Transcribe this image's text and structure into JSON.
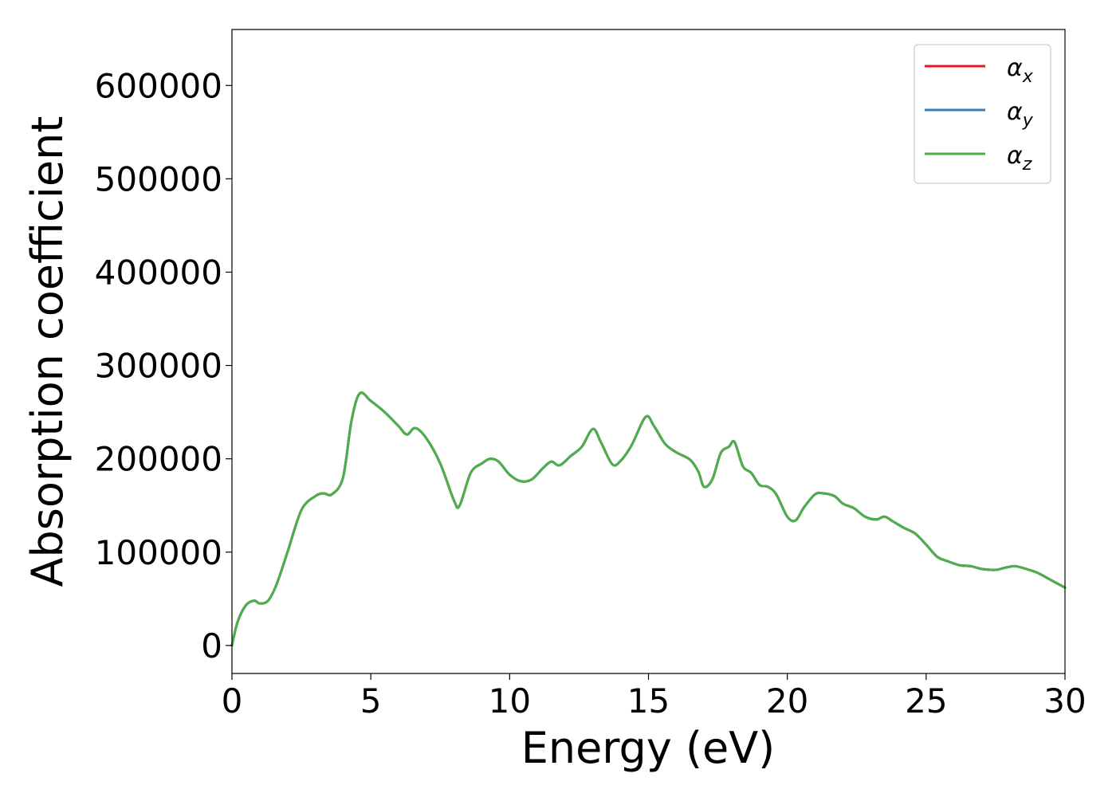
{
  "chart_data": {
    "type": "line",
    "title": "",
    "xlabel": "Energy (eV)",
    "ylabel": "Absorption coefficient",
    "xlim": [
      0,
      30
    ],
    "ylim": [
      -30000,
      660000
    ],
    "xticks": [
      0,
      5,
      10,
      15,
      20,
      25,
      30
    ],
    "xtick_labels": [
      "0",
      "5",
      "10",
      "15",
      "20",
      "25",
      "30"
    ],
    "yticks": [
      0,
      100000,
      200000,
      300000,
      400000,
      500000,
      600000
    ],
    "ytick_labels": [
      "0",
      "100000",
      "200000",
      "300000",
      "400000",
      "500000",
      "600000"
    ],
    "grid": false,
    "legend_position": "top-right",
    "x": [
      0,
      0.2,
      0.5,
      0.8,
      1.0,
      1.3,
      1.6,
      2.0,
      2.5,
      3.0,
      3.3,
      3.6,
      4.0,
      4.3,
      4.6,
      5.0,
      5.5,
      6.0,
      6.3,
      6.6,
      7.0,
      7.5,
      8.0,
      8.2,
      8.6,
      9.0,
      9.3,
      9.6,
      10.0,
      10.4,
      10.8,
      11.2,
      11.5,
      11.8,
      12.2,
      12.6,
      13.0,
      13.3,
      13.7,
      14.0,
      14.4,
      14.9,
      15.2,
      15.6,
      16.0,
      16.5,
      16.8,
      17.0,
      17.3,
      17.6,
      17.9,
      18.1,
      18.4,
      18.7,
      19.0,
      19.3,
      19.6,
      20.0,
      20.3,
      20.6,
      21.0,
      21.3,
      21.7,
      22.0,
      22.4,
      22.8,
      23.2,
      23.5,
      23.8,
      24.2,
      24.6,
      25.0,
      25.4,
      25.8,
      26.2,
      26.6,
      27.0,
      27.5,
      27.8,
      28.2,
      28.6,
      29.0,
      29.5,
      30.0
    ],
    "series": [
      {
        "name": "αx",
        "label_base": "α",
        "label_sub": "x",
        "color": "#e41a1c",
        "values": [
          0,
          25000,
          43000,
          48000,
          45000,
          48000,
          65000,
          100000,
          145000,
          160000,
          163000,
          162000,
          180000,
          240000,
          270000,
          262000,
          250000,
          235000,
          226000,
          233000,
          222000,
          195000,
          155000,
          150000,
          185000,
          195000,
          200000,
          197000,
          183000,
          176000,
          178000,
          190000,
          197000,
          193000,
          203000,
          213000,
          232000,
          217000,
          194000,
          198000,
          215000,
          245000,
          235000,
          216000,
          207000,
          199000,
          186000,
          170000,
          178000,
          206000,
          213000,
          218000,
          192000,
          185000,
          172000,
          170000,
          162000,
          138000,
          134000,
          148000,
          162000,
          163000,
          160000,
          152000,
          147000,
          138000,
          135000,
          138000,
          133000,
          126000,
          120000,
          108000,
          95000,
          90000,
          86000,
          85000,
          82000,
          81000,
          83000,
          85000,
          82000,
          78000,
          70000,
          62000
        ]
      },
      {
        "name": "αy",
        "label_base": "α",
        "label_sub": "y",
        "color": "#377eb8",
        "values": [
          0,
          25000,
          43000,
          48000,
          45000,
          48000,
          65000,
          100000,
          145000,
          160000,
          163000,
          162000,
          180000,
          240000,
          270000,
          262000,
          250000,
          235000,
          226000,
          233000,
          222000,
          195000,
          155000,
          150000,
          185000,
          195000,
          200000,
          197000,
          183000,
          176000,
          178000,
          190000,
          197000,
          193000,
          203000,
          213000,
          232000,
          217000,
          194000,
          198000,
          215000,
          245000,
          235000,
          216000,
          207000,
          199000,
          186000,
          170000,
          178000,
          206000,
          213000,
          218000,
          192000,
          185000,
          172000,
          170000,
          162000,
          138000,
          134000,
          148000,
          162000,
          163000,
          160000,
          152000,
          147000,
          138000,
          135000,
          138000,
          133000,
          126000,
          120000,
          108000,
          95000,
          90000,
          86000,
          85000,
          82000,
          81000,
          83000,
          85000,
          82000,
          78000,
          70000,
          62000
        ]
      },
      {
        "name": "αz",
        "label_base": "α",
        "label_sub": "z",
        "color": "#4daf4a",
        "values": [
          0,
          25000,
          43000,
          48000,
          45000,
          48000,
          65000,
          100000,
          145000,
          160000,
          163000,
          162000,
          180000,
          240000,
          270000,
          262000,
          250000,
          235000,
          226000,
          233000,
          222000,
          195000,
          155000,
          150000,
          185000,
          195000,
          200000,
          197000,
          183000,
          176000,
          178000,
          190000,
          197000,
          193000,
          203000,
          213000,
          232000,
          217000,
          194000,
          198000,
          215000,
          245000,
          235000,
          216000,
          207000,
          199000,
          186000,
          170000,
          178000,
          206000,
          213000,
          218000,
          192000,
          185000,
          172000,
          170000,
          162000,
          138000,
          134000,
          148000,
          162000,
          163000,
          160000,
          152000,
          147000,
          138000,
          135000,
          138000,
          133000,
          126000,
          120000,
          108000,
          95000,
          90000,
          86000,
          85000,
          82000,
          81000,
          83000,
          85000,
          82000,
          78000,
          70000,
          62000
        ]
      }
    ]
  }
}
